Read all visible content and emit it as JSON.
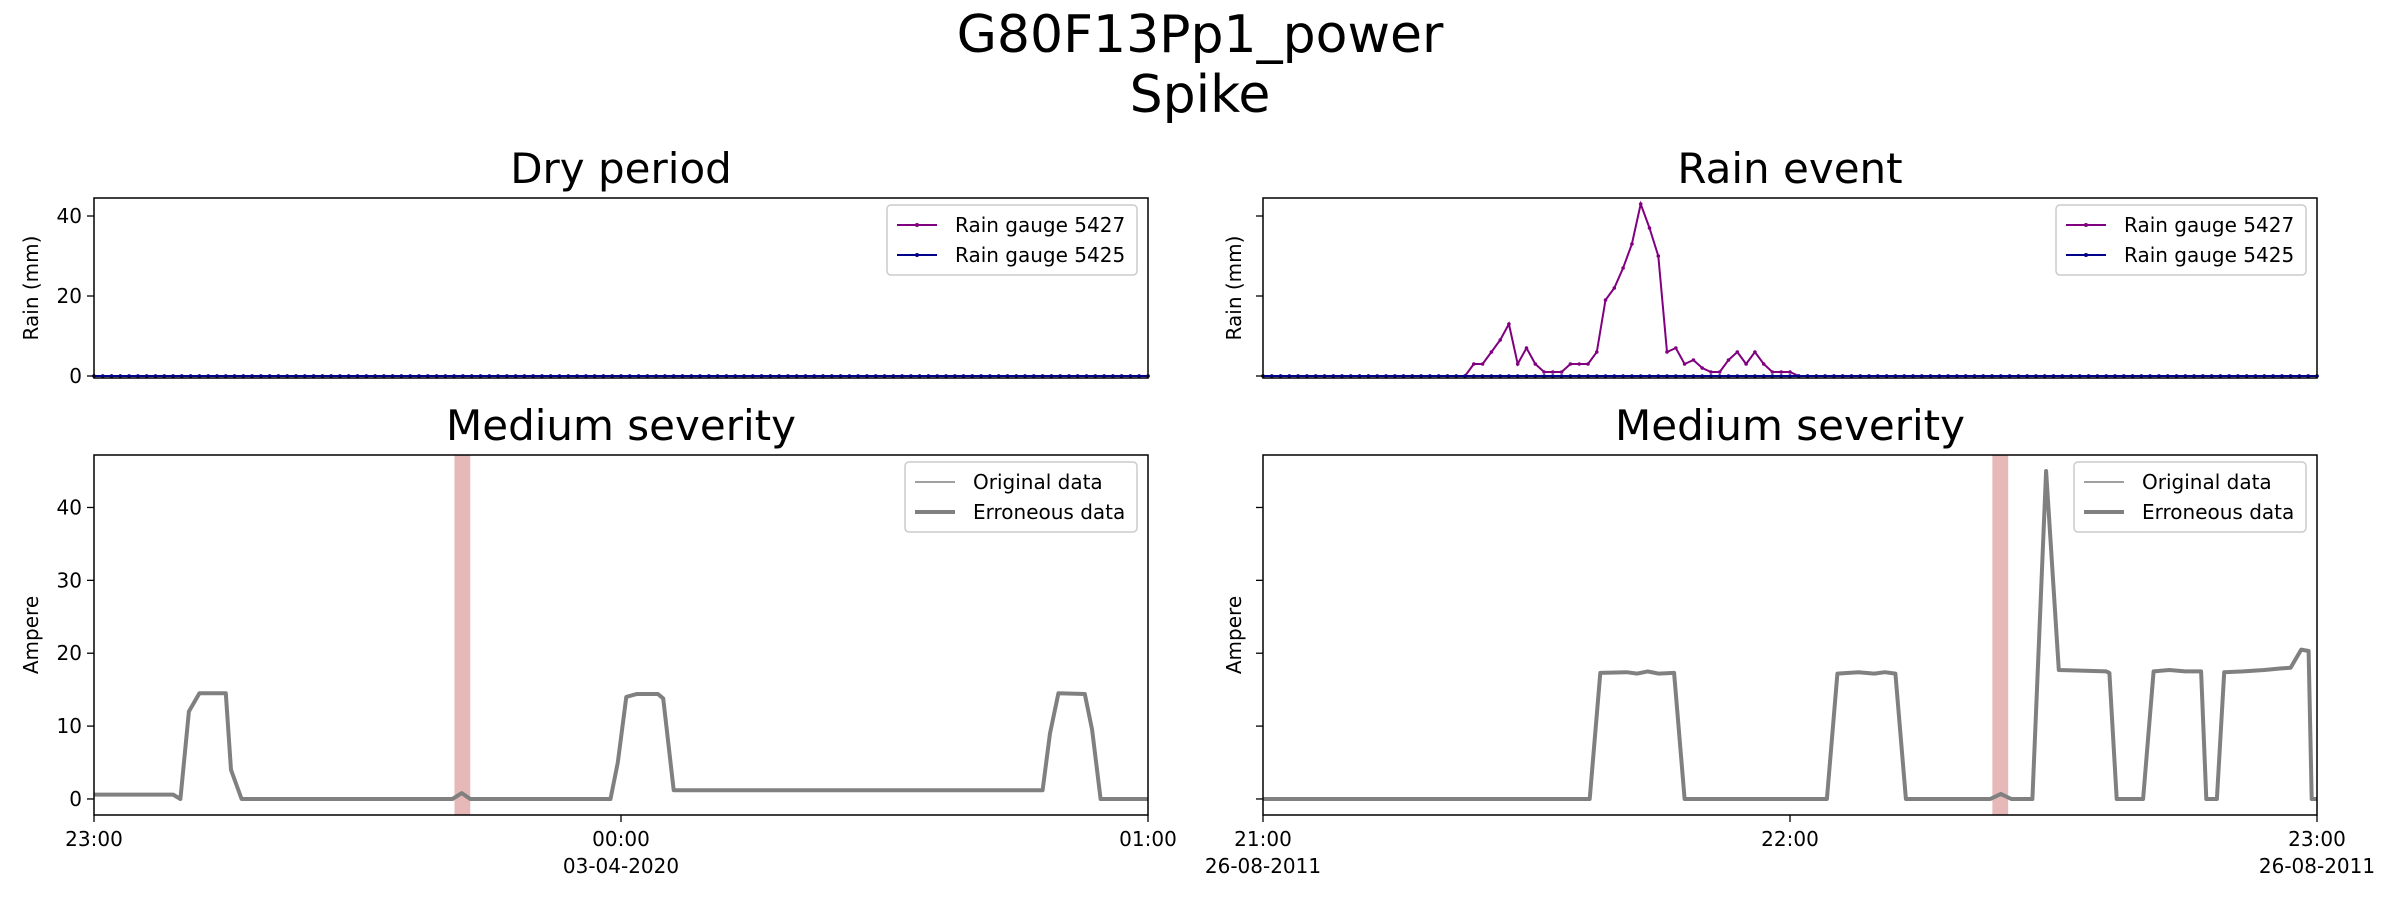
{
  "figure": {
    "title_line1": "G80F13Pp1_power",
    "title_line2": "Spike"
  },
  "chart_data": [
    {
      "type": "line",
      "title": "Dry period",
      "ylabel": "Rain (mm)",
      "xlabel": "",
      "ylim": [
        -0.5,
        44.5
      ],
      "yticks": [
        0,
        20,
        40
      ],
      "x_tick_labels": [],
      "grid": false,
      "legend_placement": "upper right",
      "series": [
        {
          "name": "Rain gauge 5427",
          "color": "#800080",
          "values": [
            0,
            0,
            0,
            0,
            0,
            0,
            0,
            0,
            0,
            0,
            0,
            0,
            0,
            0,
            0,
            0,
            0,
            0,
            0,
            0,
            0,
            0,
            0,
            0,
            0,
            0,
            0,
            0,
            0,
            0,
            0,
            0,
            0,
            0,
            0,
            0,
            0,
            0,
            0,
            0,
            0,
            0,
            0,
            0,
            0,
            0,
            0,
            0,
            0,
            0,
            0,
            0,
            0,
            0,
            0,
            0,
            0,
            0,
            0,
            0,
            0,
            0,
            0,
            0,
            0,
            0,
            0,
            0,
            0,
            0,
            0,
            0,
            0,
            0,
            0,
            0,
            0,
            0,
            0,
            0,
            0,
            0,
            0,
            0,
            0,
            0,
            0,
            0,
            0,
            0,
            0,
            0,
            0,
            0,
            0,
            0,
            0,
            0,
            0,
            0,
            0,
            0,
            0,
            0,
            0,
            0,
            0,
            0,
            0,
            0,
            0,
            0,
            0,
            0,
            0,
            0,
            0,
            0,
            0,
            0,
            0
          ]
        },
        {
          "name": "Rain gauge 5425",
          "color": "#00008b",
          "values": [
            0,
            0,
            0,
            0,
            0,
            0,
            0,
            0,
            0,
            0,
            0,
            0,
            0,
            0,
            0,
            0,
            0,
            0,
            0,
            0,
            0,
            0,
            0,
            0,
            0,
            0,
            0,
            0,
            0,
            0,
            0,
            0,
            0,
            0,
            0,
            0,
            0,
            0,
            0,
            0,
            0,
            0,
            0,
            0,
            0,
            0,
            0,
            0,
            0,
            0,
            0,
            0,
            0,
            0,
            0,
            0,
            0,
            0,
            0,
            0,
            0,
            0,
            0,
            0,
            0,
            0,
            0,
            0,
            0,
            0,
            0,
            0,
            0,
            0,
            0,
            0,
            0,
            0,
            0,
            0,
            0,
            0,
            0,
            0,
            0,
            0,
            0,
            0,
            0,
            0,
            0,
            0,
            0,
            0,
            0,
            0,
            0,
            0,
            0,
            0,
            0,
            0,
            0,
            0,
            0,
            0,
            0,
            0,
            0,
            0,
            0,
            0,
            0,
            0,
            0,
            0,
            0,
            0,
            0,
            0,
            0
          ]
        }
      ]
    },
    {
      "type": "line",
      "title": "Rain event",
      "ylabel": "Rain (mm)",
      "xlabel": "",
      "ylim": [
        -0.5,
        44.5
      ],
      "yticks": [
        0,
        20,
        40
      ],
      "x_tick_labels": [],
      "grid": false,
      "legend_placement": "upper right",
      "series": [
        {
          "name": "Rain gauge 5427",
          "color": "#800080",
          "values": [
            0,
            0,
            0,
            0,
            0,
            0,
            0,
            0,
            0,
            0,
            0,
            0,
            0,
            0,
            0,
            0,
            0,
            0,
            0,
            0,
            0,
            0,
            0,
            0,
            3,
            3,
            6,
            9,
            13,
            3,
            7,
            3,
            1,
            1,
            1,
            3,
            3,
            3,
            6,
            19,
            22,
            27,
            33,
            43,
            37,
            30,
            6,
            7,
            3,
            4,
            2,
            1,
            1,
            4,
            6,
            3,
            6,
            3,
            1,
            1,
            1,
            0,
            0,
            0,
            0,
            0,
            0,
            0,
            0,
            0,
            0,
            0,
            0,
            0,
            0,
            0,
            0,
            0,
            0,
            0,
            0,
            0,
            0,
            0,
            0,
            0,
            0,
            0,
            0,
            0,
            0,
            0,
            0,
            0,
            0,
            0,
            0,
            0,
            0,
            0,
            0,
            0,
            0,
            0,
            0,
            0,
            0,
            0,
            0,
            0,
            0,
            0,
            0,
            0,
            0,
            0,
            0,
            0,
            0,
            0,
            0
          ]
        },
        {
          "name": "Rain gauge 5425",
          "color": "#00008b",
          "values": [
            0,
            0,
            0,
            0,
            0,
            0,
            0,
            0,
            0,
            0,
            0,
            0,
            0,
            0,
            0,
            0,
            0,
            0,
            0,
            0,
            0,
            0,
            0,
            0,
            0,
            0,
            0,
            0,
            0,
            0,
            0,
            0,
            0,
            0,
            0,
            0,
            0,
            0,
            0,
            0,
            0,
            0,
            0,
            0,
            0,
            0,
            0,
            0,
            0,
            0,
            0,
            0,
            0,
            0,
            0,
            0,
            0,
            0,
            0,
            0,
            0,
            0,
            0,
            0,
            0,
            0,
            0,
            0,
            0,
            0,
            0,
            0,
            0,
            0,
            0,
            0,
            0,
            0,
            0,
            0,
            0,
            0,
            0,
            0,
            0,
            0,
            0,
            0,
            0,
            0,
            0,
            0,
            0,
            0,
            0,
            0,
            0,
            0,
            0,
            0,
            0,
            0,
            0,
            0,
            0,
            0,
            0,
            0,
            0,
            0,
            0,
            0,
            0,
            0,
            0,
            0,
            0,
            0,
            0,
            0,
            0
          ]
        }
      ]
    },
    {
      "type": "line",
      "title": "Medium severity",
      "ylabel": "Ampere",
      "xlabel": "",
      "x_start": "23:00",
      "x_end": "01:00",
      "x_tick_labels": [
        {
          "label": "23:00",
          "sublabel": "",
          "at": 0
        },
        {
          "label": "00:00",
          "sublabel": "03-04-2020",
          "at": 0.5
        },
        {
          "label": "01:00",
          "sublabel": "",
          "at": 1
        }
      ],
      "ylim": [
        -2.2,
        47.2
      ],
      "yticks": [
        0,
        10,
        20,
        30,
        40
      ],
      "grid": false,
      "legend_placement": "upper right",
      "anomaly_span": [
        0.342,
        0.357
      ],
      "anomaly_color": "#e6b8b8",
      "series": [
        {
          "name": "Original data",
          "color": "#808080",
          "style": "thin"
        },
        {
          "name": "Erroneous data",
          "color": "#808080",
          "style": "thick"
        }
      ],
      "series_points": [
        [
          0,
          0.6
        ],
        [
          0.075,
          0.6
        ],
        [
          0.082,
          0
        ],
        [
          0.09,
          12
        ],
        [
          0.1,
          14.5
        ],
        [
          0.125,
          14.5
        ],
        [
          0.13,
          4
        ],
        [
          0.14,
          0
        ],
        [
          0.34,
          0
        ],
        [
          0.349,
          0.8
        ],
        [
          0.357,
          0
        ],
        [
          0.49,
          0
        ],
        [
          0.497,
          5
        ],
        [
          0.505,
          14
        ],
        [
          0.515,
          14.4
        ],
        [
          0.535,
          14.4
        ],
        [
          0.54,
          13.8
        ],
        [
          0.55,
          1.2
        ],
        [
          0.9,
          1.2
        ],
        [
          0.907,
          9
        ],
        [
          0.915,
          14.5
        ],
        [
          0.94,
          14.4
        ],
        [
          0.947,
          9.5
        ],
        [
          0.955,
          0
        ],
        [
          1,
          0
        ]
      ]
    },
    {
      "type": "line",
      "title": "Medium severity",
      "ylabel": "Ampere",
      "xlabel": "",
      "x_start": "21:00",
      "x_end": "23:00",
      "x_tick_labels": [
        {
          "label": "21:00",
          "sublabel": "26-08-2011",
          "at": 0
        },
        {
          "label": "22:00",
          "sublabel": "",
          "at": 0.5
        },
        {
          "label": "23:00",
          "sublabel": "26-08-2011",
          "at": 1
        }
      ],
      "ylim": [
        -2.2,
        47.2
      ],
      "yticks": [
        0,
        10,
        20,
        30,
        40
      ],
      "grid": false,
      "legend_placement": "upper right",
      "anomaly_span": [
        0.692,
        0.707
      ],
      "anomaly_color": "#e6b8b8",
      "series": [
        {
          "name": "Original data",
          "color": "#808080",
          "style": "thin"
        },
        {
          "name": "Erroneous data",
          "color": "#808080",
          "style": "thick"
        }
      ],
      "series_points": [
        [
          0,
          0
        ],
        [
          0.31,
          0
        ],
        [
          0.32,
          17.3
        ],
        [
          0.345,
          17.4
        ],
        [
          0.355,
          17.2
        ],
        [
          0.365,
          17.5
        ],
        [
          0.375,
          17.2
        ],
        [
          0.39,
          17.3
        ],
        [
          0.4,
          0
        ],
        [
          0.535,
          0
        ],
        [
          0.545,
          17.2
        ],
        [
          0.565,
          17.4
        ],
        [
          0.58,
          17.2
        ],
        [
          0.59,
          17.4
        ],
        [
          0.6,
          17.2
        ],
        [
          0.61,
          0
        ],
        [
          0.69,
          0
        ],
        [
          0.7,
          0.7
        ],
        [
          0.71,
          0
        ],
        [
          0.73,
          0
        ],
        [
          0.743,
          45
        ],
        [
          0.755,
          17.7
        ],
        [
          0.78,
          17.6
        ],
        [
          0.8,
          17.5
        ],
        [
          0.803,
          17.3
        ],
        [
          0.81,
          0
        ],
        [
          0.835,
          0
        ],
        [
          0.845,
          17.5
        ],
        [
          0.86,
          17.7
        ],
        [
          0.875,
          17.5
        ],
        [
          0.89,
          17.5
        ],
        [
          0.895,
          0
        ],
        [
          0.905,
          0
        ],
        [
          0.912,
          17.4
        ],
        [
          0.93,
          17.5
        ],
        [
          0.95,
          17.7
        ],
        [
          0.965,
          17.9
        ],
        [
          0.975,
          18
        ],
        [
          0.985,
          20.5
        ],
        [
          0.992,
          20.3
        ],
        [
          0.995,
          0
        ],
        [
          1,
          0
        ]
      ]
    }
  ]
}
